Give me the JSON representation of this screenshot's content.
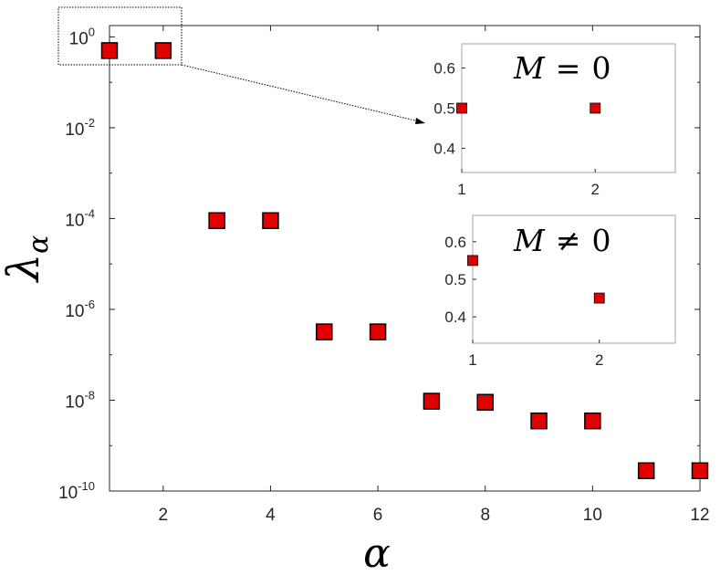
{
  "chart_data": [
    {
      "type": "scatter",
      "title": "",
      "xlabel": "α",
      "ylabel": "λ",
      "ylabel_subscript": "α",
      "xlim": [
        1,
        12
      ],
      "ylim_log10": [
        -10,
        0.25
      ],
      "y_scale": "log",
      "x_ticks": [
        2,
        4,
        6,
        8,
        10,
        12
      ],
      "y_tick_base": "10",
      "y_tick_exponents": [
        "0",
        "-2",
        "-4",
        "-6",
        "-8",
        "-10"
      ],
      "grid": false,
      "marker": "square",
      "marker_color": "#e00000",
      "x": [
        1,
        2,
        3,
        4,
        5,
        6,
        7,
        8,
        9,
        10,
        11,
        12
      ],
      "y": [
        0.5,
        0.5,
        9e-05,
        9e-05,
        3.2e-07,
        3.2e-07,
        9.5e-09,
        9e-09,
        3.5e-09,
        3.5e-09,
        2.8e-10,
        2.8e-10
      ]
    },
    {
      "type": "scatter",
      "annotation": "M = 0",
      "annotation_parts": {
        "var": "M",
        "op": "=",
        "val": "0"
      },
      "xlim": [
        1,
        2.6
      ],
      "ylim": [
        0.34,
        0.66
      ],
      "x_ticks": [
        "1",
        "2"
      ],
      "y_ticks": [
        "0.4",
        "0.5",
        "0.6"
      ],
      "y_tick_values": [
        0.4,
        0.5,
        0.6
      ],
      "x": [
        1,
        2
      ],
      "y": [
        0.5,
        0.5
      ]
    },
    {
      "type": "scatter",
      "annotation": "M ≠ 0",
      "annotation_parts": {
        "var": "M",
        "op": "≠",
        "val": "0"
      },
      "xlim": [
        1,
        2.6
      ],
      "ylim": [
        0.33,
        0.67
      ],
      "x_ticks": [
        "1",
        "2"
      ],
      "y_ticks": [
        "0.4",
        "0.5",
        "0.6"
      ],
      "y_tick_values": [
        0.4,
        0.5,
        0.6
      ],
      "x": [
        1,
        2
      ],
      "y": [
        0.55,
        0.45
      ]
    }
  ]
}
